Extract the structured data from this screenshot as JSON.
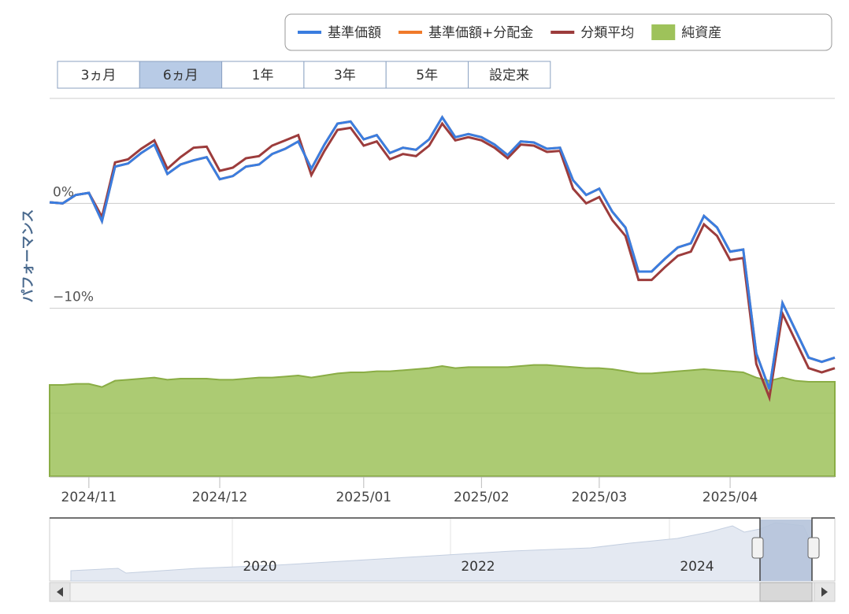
{
  "chart_data": {
    "type": "line",
    "legend": [
      "基準価額",
      "基準価額+分配金",
      "分類平均",
      "純資産"
    ],
    "range_buttons": [
      "3ヵ月",
      "6ヵ月",
      "1年",
      "3年",
      "5年",
      "設定来"
    ],
    "selected_range": "6ヵ月",
    "ylabel": "パフォーマンス",
    "ylim": [
      -26,
      10
    ],
    "yticks": [
      {
        "value": 0,
        "label": "0%"
      },
      {
        "value": -10,
        "label": "−10%"
      }
    ],
    "grid": true,
    "categories": [
      null,
      null,
      null,
      "2024/11",
      null,
      null,
      null,
      null,
      null,
      null,
      null,
      null,
      null,
      "2024/12",
      null,
      null,
      null,
      null,
      null,
      null,
      null,
      null,
      null,
      null,
      "2025/01",
      null,
      null,
      null,
      null,
      null,
      null,
      null,
      null,
      "2025/02",
      null,
      null,
      null,
      null,
      null,
      null,
      null,
      null,
      "2025/03",
      null,
      null,
      null,
      null,
      null,
      null,
      null,
      null,
      null,
      "2025/04",
      null,
      null,
      null,
      null,
      null,
      null,
      null,
      null
    ],
    "series": [
      {
        "name": "純資産",
        "type": "area",
        "color": "#9ec25a",
        "values": [
          -17.3,
          -17.3,
          -17.2,
          -17.2,
          -17.5,
          -16.9,
          -16.8,
          -16.7,
          -16.6,
          -16.8,
          -16.7,
          -16.7,
          -16.7,
          -16.8,
          -16.8,
          -16.7,
          -16.6,
          -16.6,
          -16.5,
          -16.4,
          -16.6,
          -16.4,
          -16.2,
          -16.1,
          -16.1,
          -16.0,
          -16.0,
          -15.9,
          -15.8,
          -15.7,
          -15.5,
          -15.7,
          -15.6,
          -15.6,
          -15.6,
          -15.6,
          -15.5,
          -15.4,
          -15.4,
          -15.5,
          -15.6,
          -15.7,
          -15.7,
          -15.8,
          -16.0,
          -16.2,
          -16.2,
          -16.1,
          -16.0,
          -15.9,
          -15.8,
          -15.9,
          -16.0,
          -16.1,
          -16.6,
          -16.9,
          -16.6,
          -16.9,
          -17.0,
          -17.0,
          -17.0
        ]
      },
      {
        "name": "基準価額+分配金",
        "type": "line",
        "color": "#f07a2a",
        "values": [
          0.1,
          0.0,
          0.8,
          1.0,
          -1.7,
          3.5,
          3.8,
          4.8,
          5.6,
          2.8,
          3.7,
          4.1,
          4.4,
          2.3,
          2.6,
          3.5,
          3.7,
          4.7,
          5.2,
          5.9,
          3.3,
          5.6,
          7.6,
          7.8,
          6.1,
          6.5,
          4.8,
          5.3,
          5.1,
          6.1,
          8.2,
          6.3,
          6.6,
          6.3,
          5.6,
          4.6,
          5.9,
          5.8,
          5.2,
          5.3,
          2.2,
          0.8,
          1.4,
          -0.8,
          -2.3,
          -6.5,
          -6.5,
          -5.3,
          -4.2,
          -3.8,
          -1.2,
          -2.3,
          -4.6,
          -4.4,
          -14.3,
          -17.7,
          -9.5,
          -12.1,
          -14.7,
          -15.1,
          -14.7
        ]
      },
      {
        "name": "分類平均",
        "type": "line",
        "color": "#9c3c3c",
        "values": [
          0.1,
          0.0,
          0.8,
          1.0,
          -1.3,
          3.9,
          4.2,
          5.2,
          6.0,
          3.3,
          4.4,
          5.3,
          5.4,
          3.1,
          3.4,
          4.3,
          4.5,
          5.5,
          6.0,
          6.5,
          2.7,
          5.0,
          7.0,
          7.2,
          5.5,
          5.9,
          4.2,
          4.7,
          4.5,
          5.5,
          7.6,
          6.0,
          6.3,
          6.0,
          5.3,
          4.3,
          5.6,
          5.5,
          4.9,
          5.0,
          1.4,
          0.0,
          0.6,
          -1.6,
          -3.1,
          -7.3,
          -7.3,
          -6.1,
          -5.0,
          -4.6,
          -2.0,
          -3.1,
          -5.4,
          -5.2,
          -15.3,
          -18.5,
          -10.5,
          -13.1,
          -15.7,
          -16.1,
          -15.7
        ]
      },
      {
        "name": "基準価額",
        "type": "line",
        "color": "#3a7de0",
        "values": [
          0.1,
          0.0,
          0.8,
          1.0,
          -1.7,
          3.5,
          3.8,
          4.8,
          5.6,
          2.8,
          3.7,
          4.1,
          4.4,
          2.3,
          2.6,
          3.5,
          3.7,
          4.7,
          5.2,
          5.9,
          3.3,
          5.6,
          7.6,
          7.8,
          6.1,
          6.5,
          4.8,
          5.3,
          5.1,
          6.1,
          8.2,
          6.3,
          6.6,
          6.3,
          5.6,
          4.6,
          5.9,
          5.8,
          5.2,
          5.3,
          2.2,
          0.8,
          1.4,
          -0.8,
          -2.3,
          -6.5,
          -6.5,
          -5.3,
          -4.2,
          -3.8,
          -1.2,
          -2.3,
          -4.6,
          -4.4,
          -14.3,
          -17.7,
          -9.5,
          -12.1,
          -14.7,
          -15.1,
          -14.7
        ]
      }
    ],
    "navigator_labels": [
      "2020",
      "2022",
      "2024"
    ]
  }
}
